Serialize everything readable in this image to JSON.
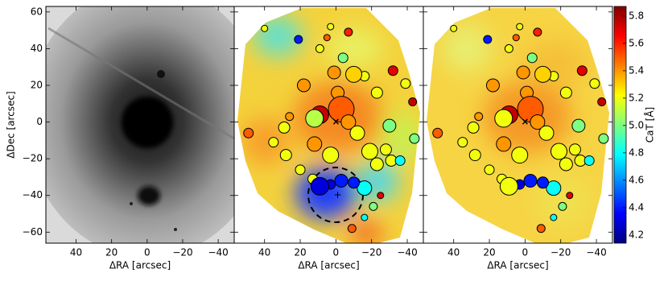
{
  "chart_data": [
    {
      "type": "image",
      "x_label": "ΔRA [arcsec]",
      "y_label": "ΔDec [arcsec]",
      "xlim": [
        57,
        -49
      ],
      "ylim": [
        -66,
        63
      ],
      "xticks": [
        40,
        20,
        0,
        {
          "value": -20,
          "label": "−20"
        },
        {
          "value": -40,
          "label": "−40"
        }
      ],
      "yticks": [
        60,
        40,
        20,
        0,
        {
          "value": -20,
          "label": "−20"
        },
        {
          "value": -40,
          "label": "−40"
        },
        {
          "value": -60,
          "label": "−60"
        }
      ]
    },
    {
      "type": "scatter",
      "x_label": "ΔRA [arcsec]",
      "xlim": [
        57,
        -49
      ],
      "ylim": [
        -66,
        63
      ],
      "xticks": [
        40,
        20,
        0,
        {
          "value": -20,
          "label": "−20"
        },
        {
          "value": -40,
          "label": "−40"
        }
      ],
      "points": {
        "x": [
          40,
          21,
          9,
          5,
          3,
          -7,
          -4,
          -16,
          18,
          1,
          -10,
          -32,
          -23,
          -39,
          -1,
          9,
          -3,
          12,
          -7,
          -43,
          26,
          29,
          49,
          12,
          -12,
          -30,
          -44,
          35,
          28,
          3,
          -19,
          -28,
          -31,
          -36,
          -23,
          20,
          3,
          13,
          9,
          -3,
          -16,
          -10,
          -25,
          -21,
          -16,
          -9
        ],
        "y": [
          51,
          45,
          40,
          46,
          52,
          49,
          35,
          25,
          20,
          27,
          26,
          28,
          16,
          21,
          16,
          4,
          7,
          2,
          0,
          11,
          3,
          -3,
          -6,
          -12,
          -6,
          -2,
          -9,
          -11,
          -18,
          -18,
          -16,
          -15,
          -21,
          -21,
          -23,
          -26,
          -34,
          -31,
          -35,
          -32,
          -36,
          -33,
          -40,
          -46,
          -52,
          -58
        ],
        "sizes": [
          4,
          5,
          5,
          4,
          4,
          5,
          6,
          6,
          8,
          8,
          10,
          6,
          7,
          6,
          8,
          11,
          16,
          11,
          9,
          5,
          5,
          7,
          6,
          9,
          9,
          8,
          6,
          6,
          7,
          10,
          10,
          7,
          7,
          6,
          8,
          6,
          6,
          6,
          11,
          8,
          9,
          7,
          4,
          5,
          4,
          5
        ],
        "values": [
          5.2,
          4.4,
          5.2,
          5.5,
          5.2,
          5.6,
          5.0,
          5.2,
          5.4,
          5.4,
          5.3,
          5.7,
          5.2,
          5.2,
          5.4,
          5.75,
          5.5,
          5.1,
          5.4,
          5.75,
          5.4,
          5.2,
          5.5,
          5.4,
          5.2,
          5.0,
          5.0,
          5.2,
          5.2,
          5.2,
          5.2,
          5.2,
          5.2,
          4.8,
          5.2,
          5.2,
          4.3,
          5.2,
          4.3,
          4.4,
          4.8,
          4.4,
          5.7,
          5.0,
          4.8,
          5.5
        ]
      }
    },
    {
      "type": "scatter",
      "x_label": "ΔRA [arcsec]",
      "xlim": [
        57,
        -49
      ],
      "ylim": [
        -66,
        63
      ],
      "xticks": [
        40,
        20,
        0,
        {
          "value": -20,
          "label": "−20"
        },
        {
          "value": -40,
          "label": "−40"
        }
      ],
      "points": {
        "x": [
          40,
          21,
          9,
          5,
          3,
          -7,
          -4,
          -16,
          18,
          1,
          -10,
          -32,
          -23,
          -39,
          -1,
          9,
          -3,
          12,
          -7,
          -43,
          26,
          29,
          49,
          12,
          -12,
          -30,
          -44,
          35,
          28,
          3,
          -19,
          -28,
          -31,
          -36,
          -23,
          20,
          3,
          13,
          9,
          -3,
          -16,
          -10,
          -25,
          -21,
          -16,
          -9
        ],
        "y": [
          51,
          45,
          40,
          46,
          52,
          49,
          35,
          25,
          20,
          27,
          26,
          28,
          16,
          21,
          16,
          4,
          7,
          2,
          0,
          11,
          3,
          -3,
          -6,
          -12,
          -6,
          -2,
          -9,
          -11,
          -18,
          -18,
          -16,
          -15,
          -21,
          -21,
          -23,
          -26,
          -34,
          -31,
          -35,
          -32,
          -36,
          -33,
          -40,
          -46,
          -52,
          -58
        ],
        "sizes": [
          4,
          5,
          5,
          4,
          4,
          5,
          6,
          6,
          8,
          8,
          10,
          6,
          7,
          6,
          8,
          11,
          16,
          11,
          9,
          5,
          5,
          7,
          6,
          9,
          9,
          8,
          6,
          6,
          7,
          10,
          10,
          7,
          7,
          6,
          8,
          6,
          6,
          6,
          11,
          8,
          9,
          7,
          4,
          5,
          4,
          5
        ],
        "values": [
          5.2,
          4.4,
          5.2,
          5.5,
          5.2,
          5.6,
          5.0,
          5.2,
          5.4,
          5.4,
          5.3,
          5.7,
          5.2,
          5.2,
          5.4,
          5.75,
          5.5,
          5.2,
          5.4,
          5.75,
          5.4,
          5.2,
          5.5,
          5.4,
          5.2,
          5.0,
          5.0,
          5.2,
          5.2,
          5.2,
          5.2,
          5.2,
          5.2,
          4.8,
          5.2,
          5.2,
          4.3,
          5.2,
          5.2,
          4.4,
          4.8,
          4.4,
          5.7,
          5.0,
          4.8,
          5.5
        ]
      }
    }
  ],
  "colorbar": {
    "label": "CaT [Å]",
    "lim": [
      4.14,
      5.87
    ],
    "ticks": [
      4.2,
      4.4,
      4.6,
      4.8,
      {
        "value": 5,
        "label": "5.0"
      },
      5.2,
      5.4,
      5.6,
      5.8
    ]
  }
}
